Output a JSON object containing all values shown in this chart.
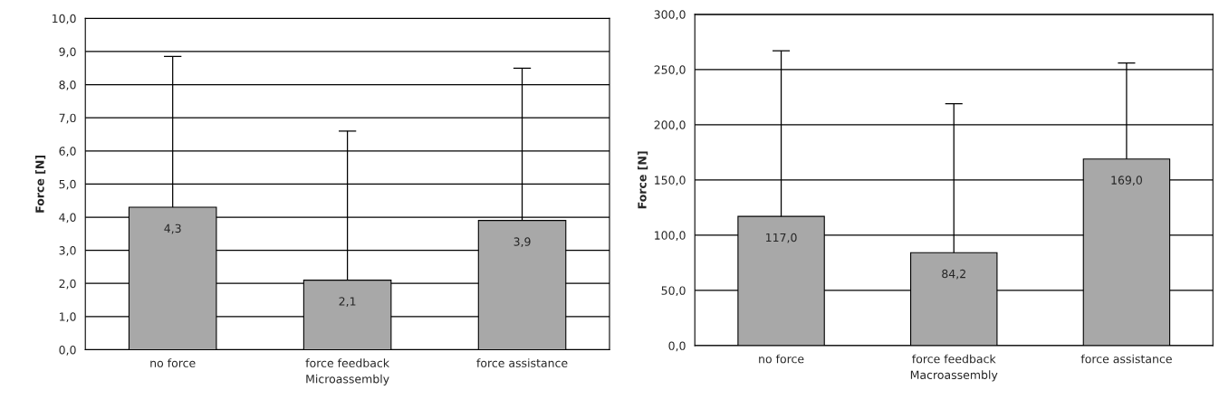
{
  "chart_data": [
    {
      "type": "bar",
      "categories": [
        "no force",
        "force feedback",
        "force assistance"
      ],
      "xlabel": "Microassembly",
      "ylabel": "Force [N]",
      "values": [
        4.3,
        2.1,
        3.9
      ],
      "value_labels": [
        "4,3",
        "2,1",
        "3,9"
      ],
      "errors": [
        [
          4.3,
          8.85
        ],
        [
          2.1,
          6.6
        ],
        [
          3.9,
          8.5
        ]
      ],
      "color": "#a8a8a8",
      "ylim": [
        0,
        10
      ],
      "yticks": [
        {
          "value": 0,
          "label": "0,0"
        },
        {
          "value": 1,
          "label": "1,0"
        },
        {
          "value": 2,
          "label": "2,0"
        },
        {
          "value": 3,
          "label": "3,0"
        },
        {
          "value": 4,
          "label": "4,0"
        },
        {
          "value": 5,
          "label": "5,0"
        },
        {
          "value": 6,
          "label": "6,0"
        },
        {
          "value": 7,
          "label": "7,0"
        },
        {
          "value": 8,
          "label": "8,0"
        },
        {
          "value": 9,
          "label": "9,0"
        },
        {
          "value": 10,
          "label": "10,0"
        }
      ],
      "grid": "y",
      "legend": false
    },
    {
      "type": "bar",
      "categories": [
        "no force",
        "force feedback",
        "force assistance"
      ],
      "xlabel": "Macroassembly",
      "ylabel": "Force [N]",
      "values": [
        117.0,
        84.2,
        169.0
      ],
      "value_labels": [
        "117,0",
        "84,2",
        "169,0"
      ],
      "errors": [
        [
          117.0,
          267
        ],
        [
          84.2,
          219
        ],
        [
          169.0,
          256
        ]
      ],
      "color": "#a8a8a8",
      "ylim": [
        0,
        300
      ],
      "yticks": [
        {
          "value": 0,
          "label": "0,0"
        },
        {
          "value": 50,
          "label": "50,0"
        },
        {
          "value": 100,
          "label": "100,0"
        },
        {
          "value": 150,
          "label": "150,0"
        },
        {
          "value": 200,
          "label": "200,0"
        },
        {
          "value": 250,
          "label": "250,0"
        },
        {
          "value": 300,
          "label": "300,0"
        }
      ],
      "grid": "y",
      "legend": false
    }
  ]
}
